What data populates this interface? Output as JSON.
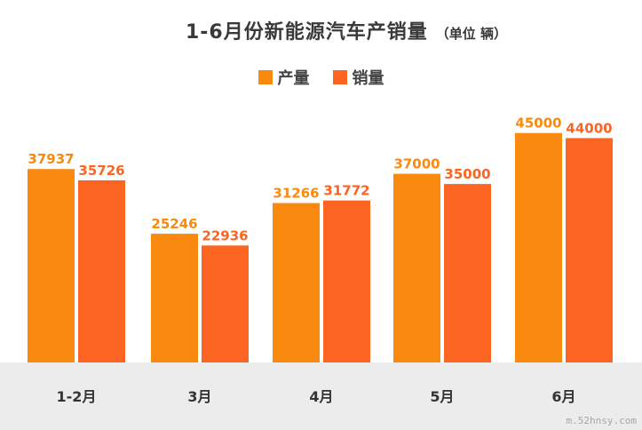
{
  "chart_data": {
    "type": "bar",
    "title": "1-6月份新能源汽车产销量",
    "subtitle": "（单位 辆）",
    "categories": [
      "1-2月",
      "3月",
      "4月",
      "5月",
      "6月"
    ],
    "series": [
      {
        "name": "产量",
        "color": "#f98a0f",
        "values": [
          37937,
          25246,
          31266,
          37000,
          45000
        ]
      },
      {
        "name": "销量",
        "color": "#fc6422",
        "values": [
          35726,
          22936,
          31772,
          35000,
          44000
        ]
      }
    ],
    "ylim": [
      0,
      50000
    ],
    "grid": false,
    "legend_position": "top-center",
    "data_labels": true
  },
  "watermark": "m.52hnsy.com"
}
